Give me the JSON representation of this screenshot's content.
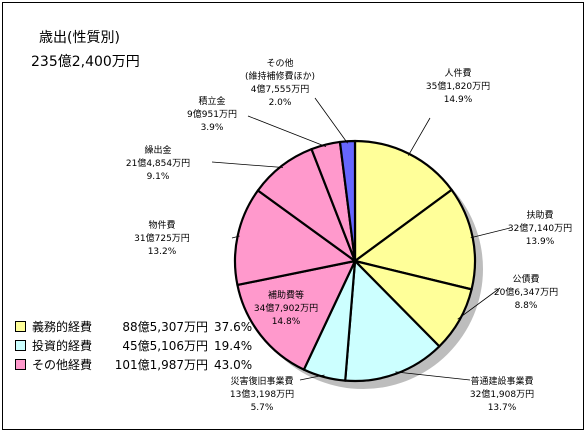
{
  "chart_data": {
    "type": "pie",
    "title": "歳出(性質別)",
    "subtitle": "235億2,400万円",
    "slices": [
      {
        "name": "人件費",
        "amount": "35億1,820万円",
        "pct_label": "14.9%",
        "value": 14.9,
        "group": 0
      },
      {
        "name": "扶助費",
        "amount": "32億7,140万円",
        "pct_label": "13.9%",
        "value": 13.9,
        "group": 0
      },
      {
        "name": "公債費",
        "amount": "20億6,347万円",
        "pct_label": "8.8%",
        "value": 8.8,
        "group": 0
      },
      {
        "name": "普通建設事業費",
        "amount": "32億1,908万円",
        "pct_label": "13.7%",
        "value": 13.7,
        "group": 1
      },
      {
        "name": "災害復旧事業費",
        "amount": "13億3,198万円",
        "pct_label": "5.7%",
        "value": 5.7,
        "group": 1
      },
      {
        "name": "補助費等",
        "amount": "34億7,902万円",
        "pct_label": "14.8%",
        "value": 14.8,
        "group": 2
      },
      {
        "name": "物件費",
        "amount": "31億725万円",
        "pct_label": "13.2%",
        "value": 13.2,
        "group": 2
      },
      {
        "name": "繰出金",
        "amount": "21億4,854万円",
        "pct_label": "9.1%",
        "value": 9.1,
        "group": 2
      },
      {
        "name": "積立金",
        "amount": "9億951万円",
        "pct_label": "3.9%",
        "value": 3.9,
        "group": 2
      },
      {
        "name": "その他\n(維持補修費ほか)",
        "amount": "4億7,555万円",
        "pct_label": "2.0%",
        "value": 2.0,
        "group": 3
      }
    ],
    "legend": [
      {
        "label": "義務的経費",
        "amount": "88億5,307万円",
        "pct": "37.6%",
        "color": "#ffff99"
      },
      {
        "label": "投資的経費",
        "amount": "45億5,106万円",
        "pct": "19.4%",
        "color": "#ccffff"
      },
      {
        "label": "その他経費",
        "amount": "101億1,987万円",
        "pct": "43.0%",
        "color": "#ff99cc"
      }
    ],
    "group_colors": [
      "#ffff99",
      "#ccffff",
      "#ff99cc",
      "#6666ff"
    ]
  }
}
